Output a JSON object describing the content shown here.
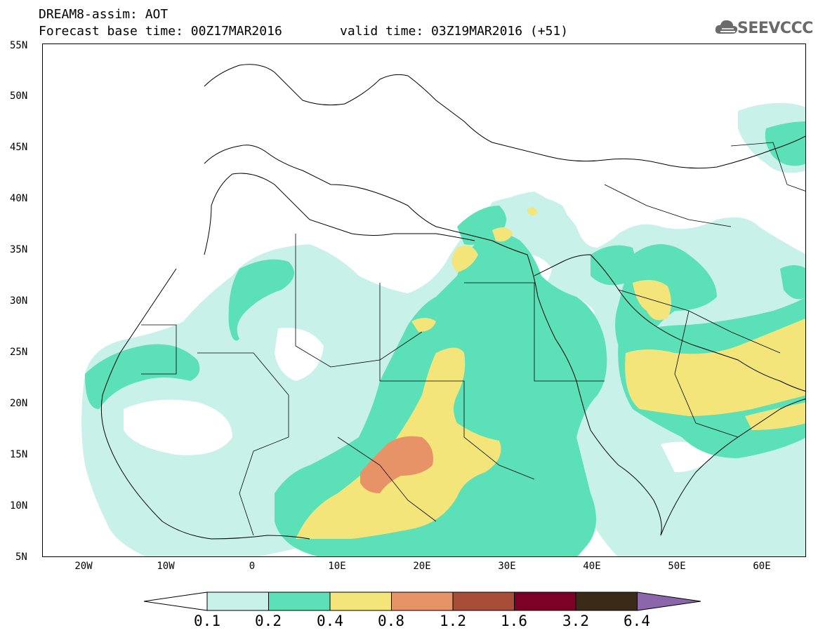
{
  "header": {
    "title_line1": "DREAM8-assim: AOT",
    "title_line2": "Forecast base time: 00Z17MAR2016",
    "valid_time": "valid time: 03Z19MAR2016 (+51)",
    "logo_text": "SEEVCCC"
  },
  "map": {
    "lat_labels": [
      "55N",
      "50N",
      "45N",
      "40N",
      "35N",
      "30N",
      "25N",
      "20N",
      "15N",
      "10N",
      "5N"
    ],
    "lon_labels": [
      "20W",
      "10W",
      "0",
      "10E",
      "20E",
      "30E",
      "40E",
      "50E",
      "60E"
    ],
    "lat_range": [
      5,
      55
    ],
    "lon_range": [
      -25,
      65
    ]
  },
  "colorbar": {
    "labels": [
      "0.1",
      "0.2",
      "0.4",
      "0.8",
      "1.2",
      "1.6",
      "3.2",
      "6.4"
    ],
    "colors": [
      "#c8f2e9",
      "#5be0b8",
      "#f3e57a",
      "#e89268",
      "#a84e38",
      "#7d0026",
      "#3b2a18",
      "#8c66aa"
    ]
  }
}
